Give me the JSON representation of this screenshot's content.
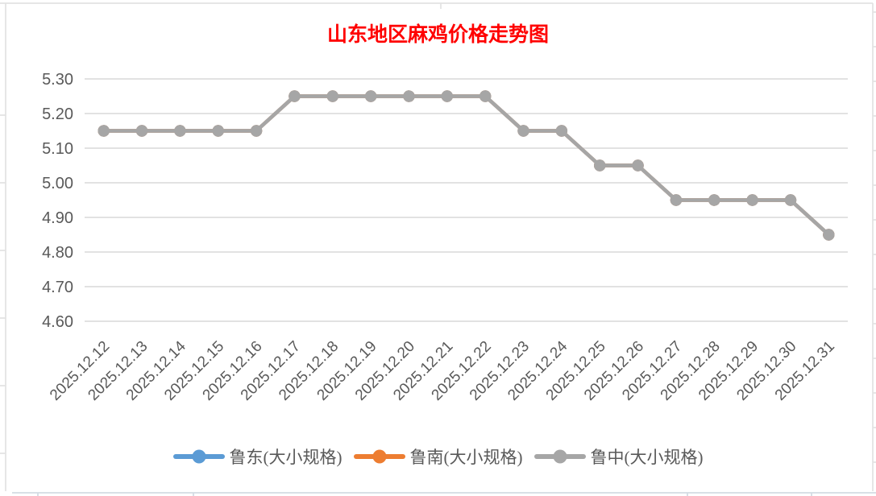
{
  "title": "山东地区麻鸡价格走势图",
  "colors": {
    "title": "#FF0000",
    "axis_label": "#595959",
    "gridline": "#D9D9D9",
    "sheet_line": "#E3E3E3",
    "sheet_line_bottom": "#D3DBE3"
  },
  "chart_data": {
    "type": "line",
    "title": "山东地区麻鸡价格走势图",
    "xlabel": "",
    "ylabel": "",
    "ylim": [
      4.6,
      5.3
    ],
    "ytick_step": 0.1,
    "yticks": [
      "5.30",
      "5.20",
      "5.10",
      "5.00",
      "4.90",
      "4.80",
      "4.70",
      "4.60"
    ],
    "grid": true,
    "legend_position": "bottom",
    "x": [
      "2025.12.12",
      "2025.12.13",
      "2025.12.14",
      "2025.12.15",
      "2025.12.16",
      "2025.12.17",
      "2025.12.18",
      "2025.12.19",
      "2025.12.20",
      "2025.12.21",
      "2025.12.22",
      "2025.12.23",
      "2025.12.24",
      "2025.12.25",
      "2025.12.26",
      "2025.12.27",
      "2025.12.28",
      "2025.12.29",
      "2025.12.30",
      "2025.12.31"
    ],
    "series": [
      {
        "name": "鲁东(大小规格)",
        "color": "#5B9BD5",
        "values": [
          5.15,
          5.15,
          5.15,
          5.15,
          5.15,
          5.25,
          5.25,
          5.25,
          5.25,
          5.25,
          5.25,
          5.15,
          5.15,
          5.05,
          5.05,
          4.95,
          4.95,
          4.95,
          4.95,
          4.85
        ]
      },
      {
        "name": "鲁南(大小规格)",
        "color": "#ED7D31",
        "values": [
          5.15,
          5.15,
          5.15,
          5.15,
          5.15,
          5.25,
          5.25,
          5.25,
          5.25,
          5.25,
          5.25,
          5.15,
          5.15,
          5.05,
          5.05,
          4.95,
          4.95,
          4.95,
          4.95,
          4.85
        ]
      },
      {
        "name": "鲁中(大小规格)",
        "color": "#A6A6A6",
        "values": [
          5.15,
          5.15,
          5.15,
          5.15,
          5.15,
          5.25,
          5.25,
          5.25,
          5.25,
          5.25,
          5.25,
          5.15,
          5.15,
          5.05,
          5.05,
          4.95,
          4.95,
          4.95,
          4.95,
          4.85
        ]
      }
    ]
  }
}
